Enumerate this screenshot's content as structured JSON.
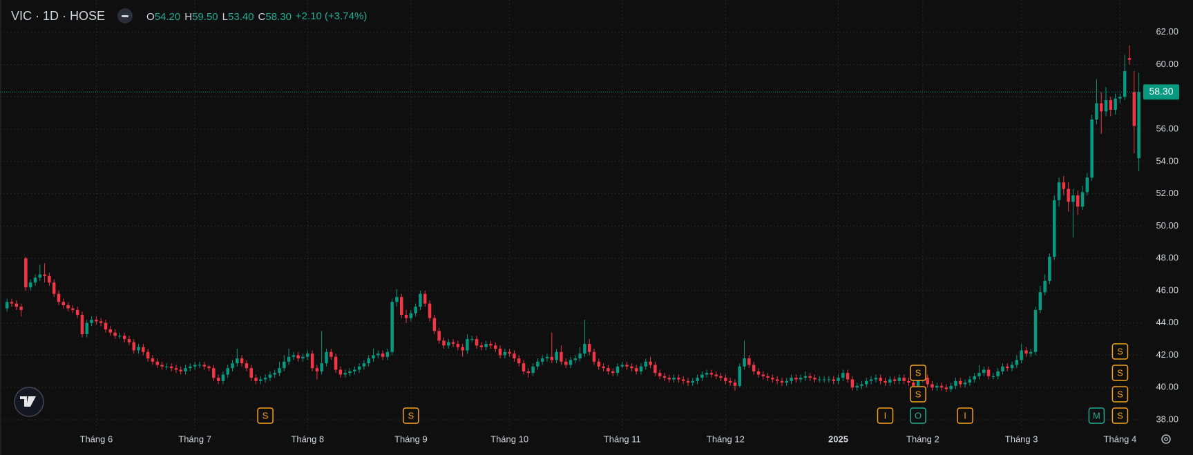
{
  "chart_data": {
    "type": "candlestick",
    "title": "VIC · 1D · HOSE",
    "ohlc_legend": [
      {
        "key": "O",
        "value": "54.20"
      },
      {
        "key": "H",
        "value": "59.50"
      },
      {
        "key": "L",
        "value": "53.40"
      },
      {
        "key": "C",
        "value": "58.30"
      }
    ],
    "change": "+2.10 (+3.74%)",
    "up_color": "#089981",
    "down_color": "#f23645",
    "open": [
      44.9,
      45.3,
      45.2,
      45.0,
      48.0,
      46.2,
      46.5,
      46.8,
      47.0,
      46.9,
      46.5,
      45.8,
      45.3,
      45.1,
      44.9,
      44.8,
      44.5,
      43.3,
      44.0,
      44.2,
      44.1,
      44.0,
      43.6,
      43.4,
      43.2,
      43.2,
      43.0,
      42.8,
      42.3,
      42.5,
      42.2,
      41.8,
      41.6,
      41.4,
      41.3,
      41.3,
      41.2,
      41.1,
      41.0,
      41.2,
      41.3,
      41.4,
      41.4,
      41.3,
      41.2,
      40.6,
      40.4,
      40.8,
      41.2,
      41.5,
      41.8,
      41.5,
      41.2,
      40.6,
      40.4,
      40.5,
      40.6,
      40.8,
      40.9,
      41.2,
      41.6,
      41.9,
      42.0,
      41.8,
      41.9,
      42.1,
      41.2,
      41.0,
      41.5,
      42.2,
      41.9,
      41.1,
      40.8,
      40.9,
      41.0,
      41.1,
      41.3,
      41.5,
      41.8,
      42.0,
      42.1,
      41.9,
      42.2,
      45.3,
      45.6,
      44.5,
      44.3,
      44.6,
      45.0,
      45.8,
      45.2,
      44.3,
      43.5,
      42.9,
      42.6,
      42.8,
      42.7,
      42.5,
      42.3,
      43.0,
      43.0,
      42.6,
      42.5,
      42.7,
      42.6,
      42.4,
      42.0,
      42.2,
      42.1,
      41.8,
      41.5,
      41.0,
      40.9,
      41.3,
      41.6,
      41.8,
      41.9,
      41.7,
      42.2,
      41.6,
      41.4,
      41.7,
      41.8,
      42.1,
      42.7,
      42.2,
      41.6,
      41.3,
      41.2,
      41.0,
      40.9,
      41.3,
      41.4,
      41.3,
      41.2,
      41.0,
      41.3,
      41.6,
      41.4,
      40.9,
      40.7,
      40.6,
      40.5,
      40.6,
      40.5,
      40.4,
      40.3,
      40.4,
      40.6,
      40.8,
      40.9,
      40.8,
      40.7,
      40.6,
      40.4,
      40.3,
      40.1,
      41.3,
      41.8,
      41.4,
      41.0,
      40.8,
      40.7,
      40.6,
      40.5,
      40.4,
      40.3,
      40.4,
      40.6,
      40.5,
      40.6,
      40.7,
      40.6,
      40.5,
      40.5,
      40.5,
      40.5,
      40.4,
      40.6,
      40.9,
      40.5,
      40.0,
      40.1,
      40.2,
      40.4,
      40.5,
      40.6,
      40.4,
      40.3,
      40.5,
      40.4,
      40.6,
      40.4,
      40.3,
      40.1,
      40.5,
      40.6,
      40.2,
      40.0,
      40.1,
      40.0,
      39.9,
      40.1,
      40.4,
      40.2,
      40.3,
      40.5,
      40.7,
      40.9,
      41.1,
      40.7,
      40.7,
      41.0,
      41.3,
      41.2,
      41.4,
      41.7,
      42.3,
      42.1,
      42.2,
      44.8,
      45.9,
      46.6,
      48.1,
      51.6,
      52.7,
      52.3,
      51.5,
      51.9,
      51.2,
      52.1,
      53.0,
      56.6,
      57.6,
      57.1,
      57.8,
      57.2,
      57.9,
      58.0,
      60.4,
      58.3,
      54.2
    ],
    "high": [
      45.5,
      45.5,
      45.4,
      45.2,
      48.1,
      46.7,
      47.0,
      47.6,
      47.7,
      47.1,
      46.7,
      46.0,
      45.5,
      45.3,
      45.1,
      45.0,
      44.7,
      44.2,
      44.4,
      44.4,
      44.3,
      44.2,
      43.8,
      43.6,
      43.4,
      43.4,
      43.2,
      43.0,
      42.7,
      42.7,
      42.4,
      42.0,
      41.8,
      41.6,
      41.5,
      41.5,
      41.4,
      41.3,
      41.4,
      41.5,
      41.6,
      41.6,
      41.6,
      41.4,
      41.4,
      40.8,
      41.0,
      41.4,
      41.7,
      42.4,
      42.0,
      41.7,
      41.4,
      40.8,
      40.7,
      40.8,
      41.0,
      41.1,
      41.6,
      42.0,
      42.4,
      42.2,
      42.2,
      42.1,
      42.3,
      42.3,
      41.4,
      43.5,
      42.4,
      42.4,
      42.1,
      41.3,
      41.1,
      41.2,
      41.3,
      41.5,
      41.7,
      42.0,
      42.4,
      42.3,
      42.3,
      42.4,
      45.5,
      46.1,
      45.8,
      44.8,
      44.8,
      45.2,
      46.0,
      46.0,
      45.4,
      44.5,
      43.7,
      43.1,
      43.0,
      43.0,
      42.9,
      42.7,
      43.3,
      43.2,
      43.2,
      42.8,
      42.9,
      42.9,
      42.8,
      42.6,
      42.4,
      42.4,
      42.3,
      42.0,
      41.7,
      41.2,
      41.5,
      41.8,
      42.0,
      42.1,
      43.4,
      42.4,
      42.6,
      41.8,
      41.9,
      42.0,
      42.5,
      44.2,
      43.0,
      42.4,
      41.8,
      41.5,
      41.4,
      41.2,
      41.5,
      41.6,
      41.6,
      41.5,
      41.4,
      41.5,
      41.8,
      41.9,
      41.6,
      41.1,
      40.9,
      40.8,
      40.8,
      40.8,
      40.7,
      40.6,
      40.6,
      40.8,
      41.0,
      41.1,
      41.1,
      41.0,
      40.9,
      40.8,
      40.6,
      40.5,
      41.5,
      42.9,
      42.0,
      41.6,
      41.2,
      41.0,
      40.9,
      40.8,
      40.7,
      40.6,
      40.6,
      40.8,
      40.8,
      40.8,
      41.0,
      40.9,
      40.8,
      40.7,
      40.7,
      40.7,
      40.7,
      40.8,
      41.1,
      41.1,
      40.7,
      40.3,
      40.4,
      40.6,
      40.7,
      40.8,
      40.8,
      40.6,
      40.7,
      40.7,
      40.8,
      40.8,
      40.6,
      40.5,
      40.7,
      40.8,
      40.8,
      40.4,
      40.3,
      40.3,
      40.2,
      40.3,
      40.6,
      40.6,
      40.5,
      40.7,
      40.9,
      41.4,
      41.3,
      41.3,
      40.9,
      41.2,
      41.5,
      41.5,
      41.6,
      42.0,
      42.7,
      42.5,
      42.4,
      45.0,
      46.3,
      47.0,
      48.3,
      51.9,
      53.0,
      53.1,
      52.7,
      52.3,
      52.2,
      52.5,
      53.3,
      56.9,
      59.1,
      58.3,
      58.6,
      58.0,
      58.2,
      58.2,
      60.6,
      61.2,
      59.6,
      59.5
    ],
    "low": [
      44.7,
      45.0,
      44.8,
      44.4,
      46.0,
      46.0,
      46.3,
      46.6,
      46.5,
      46.3,
      45.6,
      45.1,
      44.9,
      44.7,
      44.6,
      44.3,
      43.1,
      43.1,
      43.8,
      43.9,
      43.8,
      43.4,
      43.2,
      43.0,
      43.0,
      42.8,
      42.6,
      42.1,
      42.1,
      42.0,
      41.6,
      41.4,
      41.2,
      41.1,
      41.1,
      41.0,
      40.9,
      40.8,
      40.8,
      41.0,
      41.1,
      41.2,
      41.1,
      41.0,
      40.4,
      40.2,
      40.2,
      40.6,
      41.0,
      41.3,
      41.3,
      41.0,
      40.4,
      40.2,
      40.2,
      40.3,
      40.4,
      40.6,
      40.7,
      41.0,
      41.4,
      41.7,
      41.6,
      41.6,
      41.7,
      41.0,
      40.5,
      40.8,
      41.3,
      41.7,
      40.9,
      40.6,
      40.6,
      40.7,
      40.8,
      40.9,
      41.1,
      41.3,
      41.6,
      41.8,
      41.7,
      41.7,
      42.0,
      45.0,
      44.3,
      44.0,
      44.1,
      44.4,
      44.8,
      45.0,
      44.1,
      43.3,
      42.7,
      42.4,
      42.4,
      42.5,
      42.3,
      41.9,
      42.1,
      42.8,
      42.4,
      42.3,
      42.3,
      42.4,
      42.2,
      41.8,
      41.8,
      41.9,
      41.6,
      41.3,
      40.8,
      40.6,
      40.7,
      41.1,
      41.4,
      41.6,
      41.5,
      41.5,
      41.4,
      41.2,
      41.2,
      41.5,
      41.6,
      41.9,
      42.0,
      41.4,
      41.1,
      41.0,
      40.8,
      40.7,
      40.7,
      41.2,
      41.1,
      41.0,
      40.8,
      40.8,
      41.1,
      41.2,
      40.7,
      40.5,
      40.4,
      40.3,
      40.3,
      40.3,
      40.2,
      40.1,
      40.1,
      40.2,
      40.4,
      40.6,
      40.6,
      40.5,
      40.4,
      40.2,
      40.1,
      39.8,
      40.0,
      41.1,
      41.2,
      40.8,
      40.6,
      40.5,
      40.4,
      40.3,
      40.2,
      40.1,
      40.1,
      40.2,
      40.3,
      40.3,
      40.4,
      40.4,
      40.3,
      40.3,
      40.3,
      40.3,
      40.2,
      40.2,
      40.4,
      40.3,
      39.8,
      39.8,
      39.9,
      40.0,
      40.2,
      40.3,
      40.2,
      40.1,
      40.1,
      40.2,
      40.2,
      40.2,
      40.1,
      39.9,
      39.9,
      40.3,
      40.0,
      39.8,
      39.8,
      39.8,
      39.7,
      39.7,
      39.9,
      40.0,
      40.0,
      40.1,
      40.3,
      40.5,
      40.7,
      40.5,
      40.5,
      40.5,
      40.8,
      41.0,
      41.0,
      41.2,
      41.5,
      41.9,
      41.9,
      42.0,
      44.6,
      45.7,
      46.4,
      47.9,
      51.2,
      51.9,
      50.9,
      49.3,
      50.7,
      51.0,
      51.9,
      52.8,
      56.3,
      55.7,
      56.8,
      56.8,
      56.9,
      57.6,
      57.8,
      60.0,
      54.5,
      53.4
    ],
    "close": [
      45.3,
      45.2,
      45.0,
      44.8,
      46.2,
      46.5,
      46.8,
      47.0,
      46.9,
      46.5,
      45.8,
      45.3,
      45.1,
      44.9,
      44.8,
      44.5,
      43.3,
      44.0,
      44.2,
      44.1,
      44.0,
      43.6,
      43.4,
      43.2,
      43.2,
      43.0,
      42.8,
      42.3,
      42.5,
      42.2,
      41.8,
      41.6,
      41.4,
      41.3,
      41.3,
      41.2,
      41.1,
      41.0,
      41.2,
      41.3,
      41.4,
      41.4,
      41.3,
      41.2,
      40.6,
      40.4,
      40.8,
      41.2,
      41.5,
      41.8,
      41.5,
      41.2,
      40.6,
      40.4,
      40.5,
      40.6,
      40.8,
      40.9,
      41.2,
      41.6,
      41.9,
      42.0,
      41.8,
      41.9,
      42.1,
      41.2,
      41.0,
      41.5,
      42.2,
      41.9,
      41.1,
      40.8,
      40.9,
      41.0,
      41.1,
      41.3,
      41.5,
      41.8,
      42.0,
      42.1,
      41.9,
      42.2,
      45.3,
      45.6,
      44.5,
      44.3,
      44.6,
      45.0,
      45.8,
      45.2,
      44.3,
      43.5,
      42.9,
      42.6,
      42.8,
      42.7,
      42.5,
      42.3,
      43.0,
      43.0,
      42.6,
      42.5,
      42.7,
      42.6,
      42.4,
      42.0,
      42.2,
      42.1,
      41.8,
      41.5,
      41.0,
      40.9,
      41.3,
      41.6,
      41.8,
      41.9,
      41.7,
      42.2,
      41.6,
      41.4,
      41.7,
      41.8,
      42.1,
      42.7,
      42.2,
      41.6,
      41.3,
      41.2,
      41.0,
      40.9,
      41.3,
      41.4,
      41.3,
      41.2,
      41.0,
      41.3,
      41.6,
      41.4,
      40.9,
      40.7,
      40.6,
      40.5,
      40.6,
      40.5,
      40.4,
      40.3,
      40.4,
      40.6,
      40.8,
      40.9,
      40.8,
      40.7,
      40.6,
      40.4,
      40.3,
      40.1,
      41.3,
      41.8,
      41.4,
      41.0,
      40.8,
      40.7,
      40.6,
      40.5,
      40.4,
      40.3,
      40.4,
      40.6,
      40.5,
      40.6,
      40.7,
      40.6,
      40.5,
      40.5,
      40.5,
      40.5,
      40.4,
      40.6,
      40.9,
      40.5,
      40.0,
      40.1,
      40.2,
      40.4,
      40.5,
      40.6,
      40.4,
      40.3,
      40.5,
      40.4,
      40.6,
      40.4,
      40.3,
      40.1,
      40.5,
      40.6,
      40.2,
      40.0,
      40.1,
      40.0,
      39.9,
      40.1,
      40.4,
      40.2,
      40.3,
      40.5,
      40.7,
      40.9,
      41.1,
      40.7,
      40.7,
      41.0,
      41.3,
      41.2,
      41.4,
      41.7,
      42.3,
      42.1,
      42.2,
      44.8,
      45.9,
      46.6,
      48.1,
      51.6,
      52.7,
      52.3,
      51.5,
      51.9,
      51.2,
      52.1,
      53.0,
      56.6,
      57.6,
      57.1,
      57.8,
      57.2,
      57.9,
      58.0,
      59.6,
      60.3,
      56.2,
      58.3
    ],
    "ylim": [
      37.4,
      64.0
    ],
    "yticks": [
      {
        "value": 38,
        "label": "38.00"
      },
      {
        "value": 40,
        "label": "40.00"
      },
      {
        "value": 42,
        "label": "42.00"
      },
      {
        "value": 44,
        "label": "44.00"
      },
      {
        "value": 46,
        "label": "46.00"
      },
      {
        "value": 48,
        "label": "48.00"
      },
      {
        "value": 50,
        "label": "50.00"
      },
      {
        "value": 52,
        "label": "52.00"
      },
      {
        "value": 54,
        "label": "54.00"
      },
      {
        "value": 56,
        "label": "56.00"
      },
      {
        "value": 58,
        "label": "58.00"
      },
      {
        "value": 60,
        "label": "60.00"
      },
      {
        "value": 62,
        "label": "62.00"
      }
    ],
    "xlim": [
      -1.5,
      241.5
    ],
    "xticks": [
      {
        "value": 19,
        "label": "Tháng 6"
      },
      {
        "value": 40,
        "label": "Tháng 7"
      },
      {
        "value": 64,
        "label": "Tháng 8"
      },
      {
        "value": 86,
        "label": "Tháng 9"
      },
      {
        "value": 107,
        "label": "Tháng 10"
      },
      {
        "value": 131,
        "label": "Tháng 11"
      },
      {
        "value": 153,
        "label": "Tháng 12"
      },
      {
        "value": 177,
        "label": "2025"
      },
      {
        "value": 195,
        "label": "Tháng 2"
      },
      {
        "value": 216,
        "label": "Tháng 3"
      },
      {
        "value": 237,
        "label": "Tháng 4"
      }
    ],
    "last_price": {
      "value": 58.3,
      "label": "58.30"
    },
    "grid": true,
    "events": [
      {
        "label": "S",
        "index": 55,
        "color": "#f7a21b"
      },
      {
        "label": "S",
        "index": 86,
        "color": "#f7a21b"
      },
      {
        "label": "I",
        "index": 187,
        "color": "#f7a21b"
      },
      {
        "label": "O",
        "index": 194,
        "color": "#22ab94"
      },
      {
        "label": "S",
        "index": 194,
        "color": "#f7a21b"
      },
      {
        "label": "S",
        "index": 194,
        "color": "#f7a21b"
      },
      {
        "label": "I",
        "index": 204,
        "color": "#f7a21b"
      },
      {
        "label": "M",
        "index": 232,
        "color": "#22ab94"
      },
      {
        "label": "S",
        "index": 237,
        "color": "#f7a21b"
      },
      {
        "label": "S",
        "index": 237,
        "color": "#f7a21b"
      },
      {
        "label": "S",
        "index": 237,
        "color": "#f7a21b"
      },
      {
        "label": "S",
        "index": 237,
        "color": "#f7a21b"
      }
    ]
  }
}
